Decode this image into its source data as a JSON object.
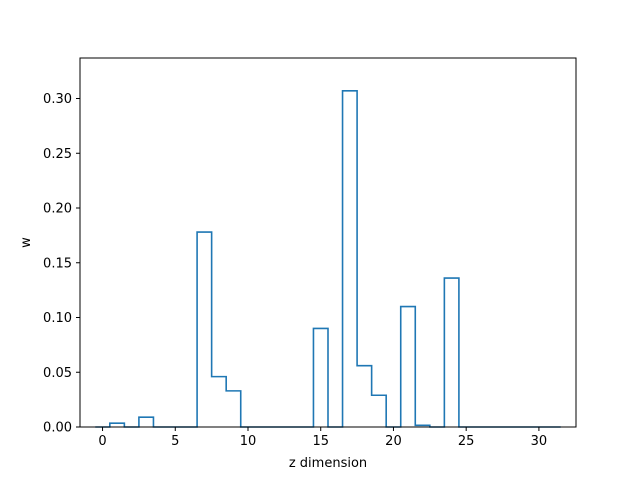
{
  "chart_data": {
    "type": "step",
    "xlabel": "z dimension",
    "ylabel": "w",
    "xlim": [
      -1.55,
      32.55
    ],
    "ylim": [
      0,
      0.337
    ],
    "x_ticks": [
      0,
      5,
      10,
      15,
      20,
      25,
      30
    ],
    "y_ticks": [
      0.0,
      0.05,
      0.1,
      0.15,
      0.2,
      0.25,
      0.3
    ],
    "x_tick_labels": [
      "0",
      "5",
      "10",
      "15",
      "20",
      "25",
      "30"
    ],
    "y_tick_labels": [
      "0.00",
      "0.05",
      "0.10",
      "0.15",
      "0.20",
      "0.25",
      "0.30"
    ],
    "grid": false,
    "series": [
      {
        "color": "#1f77b4",
        "x": [
          0,
          1,
          2,
          3,
          4,
          5,
          6,
          7,
          8,
          9,
          10,
          11,
          12,
          13,
          14,
          15,
          16,
          17,
          18,
          19,
          20,
          21,
          22,
          23,
          24,
          25,
          26,
          27,
          28,
          29,
          30,
          31
        ],
        "values": [
          0.0,
          0.0035,
          0.0,
          0.009,
          0.0,
          0.0,
          0.0,
          0.178,
          0.046,
          0.033,
          0.0,
          0.0,
          0.0,
          0.0,
          0.0,
          0.09,
          0.0,
          0.307,
          0.056,
          0.029,
          0.0,
          0.11,
          0.0015,
          0.0,
          0.136,
          0.0,
          0.0,
          0.0,
          0.0,
          0.0,
          0.0,
          0.0
        ]
      }
    ]
  }
}
